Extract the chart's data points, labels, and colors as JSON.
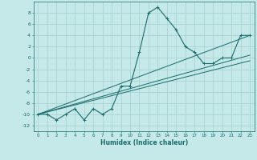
{
  "title": "",
  "xlabel": "Humidex (Indice chaleur)",
  "ylabel": "",
  "bg_color": "#c5e8e8",
  "grid_color": "#a8d0d0",
  "line_color": "#1a6b6b",
  "xlim": [
    -0.5,
    23.5
  ],
  "ylim": [
    -13,
    10
  ],
  "xticks": [
    0,
    1,
    2,
    3,
    4,
    5,
    6,
    7,
    8,
    9,
    10,
    11,
    12,
    13,
    14,
    15,
    16,
    17,
    18,
    19,
    20,
    21,
    22,
    23
  ],
  "yticks": [
    -12,
    -10,
    -8,
    -6,
    -4,
    -2,
    0,
    2,
    4,
    6,
    8
  ],
  "main_x": [
    0,
    1,
    2,
    3,
    4,
    5,
    6,
    7,
    8,
    9,
    10,
    11,
    12,
    13,
    14,
    15,
    16,
    17,
    18,
    19,
    20,
    21,
    22,
    23
  ],
  "main_y": [
    -10,
    -10,
    -11,
    -10,
    -9,
    -11,
    -9,
    -10,
    -9,
    -5,
    -5,
    1,
    8,
    9,
    7,
    5,
    2,
    1,
    -1,
    -1,
    0,
    0,
    4,
    4
  ],
  "line1_x": [
    0,
    23
  ],
  "line1_y": [
    -10,
    4
  ],
  "line2_x": [
    0,
    23
  ],
  "line2_y": [
    -10,
    0.5
  ],
  "line3_x": [
    0,
    23
  ],
  "line3_y": [
    -10,
    -0.5
  ]
}
